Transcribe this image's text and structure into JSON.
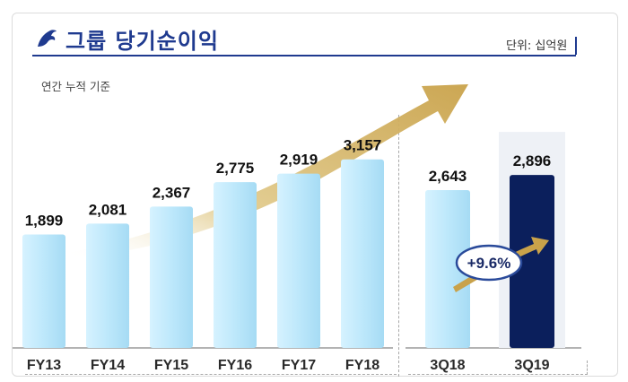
{
  "header": {
    "title": "그룹 당기순이익",
    "unit": "단위: 십억원",
    "subtitle": "연간 누적 기준"
  },
  "colors": {
    "brand": "#1f3a8f",
    "bar_light": "#bde8fb",
    "bar_dark": "#0b1f5c",
    "arrow": "#c9a24a"
  },
  "chart_data": [
    {
      "type": "bar",
      "title": "",
      "categories": [
        "FY13",
        "FY14",
        "FY15",
        "FY16",
        "FY17",
        "FY18"
      ],
      "values": [
        1899,
        2081,
        2367,
        2775,
        2919,
        3157
      ],
      "value_labels": [
        "1,899",
        "2,081",
        "2,367",
        "2,775",
        "2,919",
        "3,157"
      ],
      "ylim": [
        0,
        3600
      ],
      "grid": false,
      "legend": "none"
    },
    {
      "type": "bar",
      "title": "",
      "categories": [
        "3Q18",
        "3Q19"
      ],
      "values": [
        2643,
        2896
      ],
      "value_labels": [
        "2,643",
        "2,896"
      ],
      "ylim": [
        0,
        3600
      ],
      "grid": false,
      "legend": "none",
      "annotation": "+9.6%"
    }
  ]
}
